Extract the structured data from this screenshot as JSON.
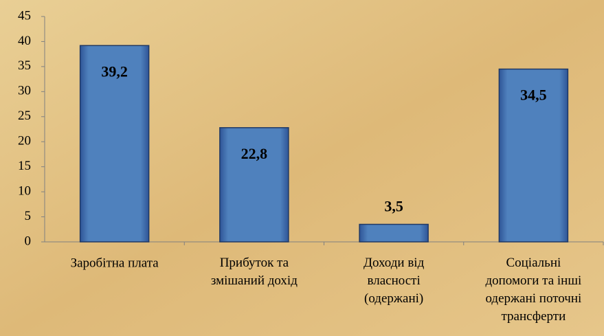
{
  "chart_data": {
    "type": "bar",
    "categories": [
      "Заробітна плата",
      "Прибуток та\nзмішаний дохід",
      "Доходи від\nвласності\n(одержані)",
      "Соціальні\nдопомоги та інші\nодержані поточні\nтрансферти"
    ],
    "values": [
      39.2,
      22.8,
      3.5,
      34.5
    ],
    "value_labels": [
      "39,2",
      "22,8",
      "3,5",
      "34,5"
    ],
    "color": "#4f81bd",
    "ylim": [
      0,
      45
    ],
    "yticks": [
      0,
      5,
      10,
      15,
      20,
      25,
      30,
      35,
      40,
      45
    ],
    "grid": false
  }
}
